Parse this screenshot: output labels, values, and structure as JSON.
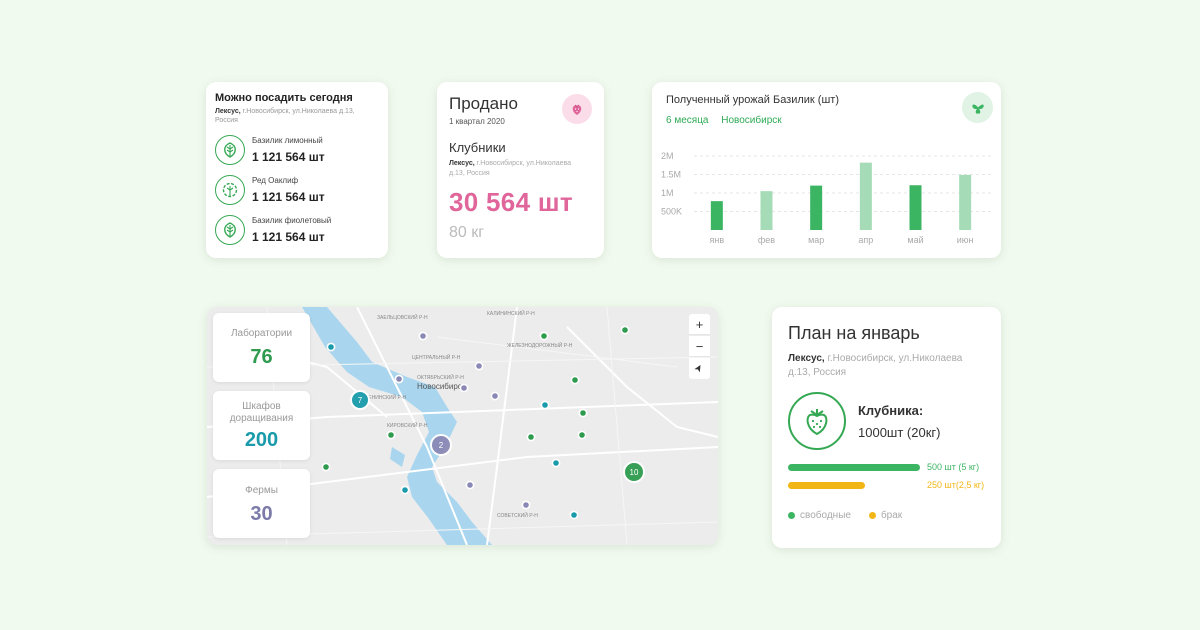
{
  "plant_today": {
    "title": "Можно посадить сегодня",
    "company": "Лексус,",
    "address": " г.Новосибирск, ул.Николаева д.13, Россия",
    "items": [
      {
        "name": "Базилик лимонный",
        "count": "1 121 564 шт",
        "icon": "basil-leaf-icon"
      },
      {
        "name": "Ред Оаклиф",
        "count": "1 121 564 шт",
        "icon": "oakleaf-lettuce-icon"
      },
      {
        "name": "Базилик фиолетовый",
        "count": "1 121 564 шт",
        "icon": "basil-leaf-icon"
      }
    ]
  },
  "sold": {
    "title": "Продано",
    "period": "1 квартал 2020",
    "product": "Клубники",
    "company": "Лексус,",
    "address": " г.Новосибирск, ул.Николаева д.13, Россия",
    "amount": "30 564 шт",
    "weight": "80 кг",
    "icon": "strawberry-icon"
  },
  "harvest": {
    "title": "Полученный урожай Базилик (шт)",
    "period": "6 месяца",
    "city": "Новосибирск",
    "icon": "leaf-icon"
  },
  "chart_data": {
    "type": "bar",
    "title": "Полученный урожай Базилик (шт)",
    "categories": [
      "янв",
      "фев",
      "мар",
      "апр",
      "май",
      "июн"
    ],
    "values": [
      780000,
      1050000,
      1200000,
      1820000,
      1210000,
      1490000
    ],
    "y_tick_labels": [
      "2M",
      "1.5M",
      "1M",
      "500K"
    ],
    "y_ticks": [
      2000000,
      1500000,
      1000000,
      500000
    ],
    "ylim": [
      0,
      2000000
    ],
    "colors": {
      "dark": "#3cb563",
      "light": "#a5dbb6"
    },
    "bar_shades": [
      "dark",
      "light",
      "dark",
      "light",
      "dark",
      "light"
    ]
  },
  "map": {
    "stats": [
      {
        "label": "Лаборатории",
        "value": "76",
        "color": "#2e9b4e"
      },
      {
        "label": "Шкафов доращивания",
        "value": "200",
        "color": "#1a9bab"
      },
      {
        "label": "Фермы",
        "value": "30",
        "color": "#7b7aa8"
      }
    ],
    "city_label": "Новосибирск",
    "district_labels": [
      "ЗАЕЛЬЦОВСКИЙ Р-Н",
      "ЦЕНТРАЛЬНЫЙ Р-Н",
      "ОКТЯБРЬСКИЙ Р-Н",
      "ЖЕЛЕЗНОДОРОЖНЫЙ Р-Н",
      "ЛЕНИНСКИЙ Р-Н",
      "КИРОВСКИЙ Р-Н",
      "СОВЕТСКИЙ Р-Н",
      "КАЛИНИНСКИЙ Р-Н"
    ],
    "clusters": [
      "7",
      "2",
      "10"
    ],
    "zoom_in": "+",
    "zoom_out": "−",
    "locate": "➤"
  },
  "plan": {
    "title": "План на январь",
    "company": "Лексус,",
    "address": " г.Новосибирск, ул.Николаева д.13, Россия",
    "product": "Клубника:",
    "amount": "1000шт (20кг)",
    "bars": [
      {
        "label": "500 шт (5 кг)",
        "fraction": 1.0,
        "color": "#3cb563"
      },
      {
        "label": "250 шт(2,5 кг)",
        "fraction": 0.58,
        "color": "#f2b516"
      }
    ],
    "legend": [
      {
        "label": "свободные",
        "color": "#3cb563"
      },
      {
        "label": "брак",
        "color": "#f2b516"
      }
    ],
    "icon": "strawberry-icon"
  }
}
